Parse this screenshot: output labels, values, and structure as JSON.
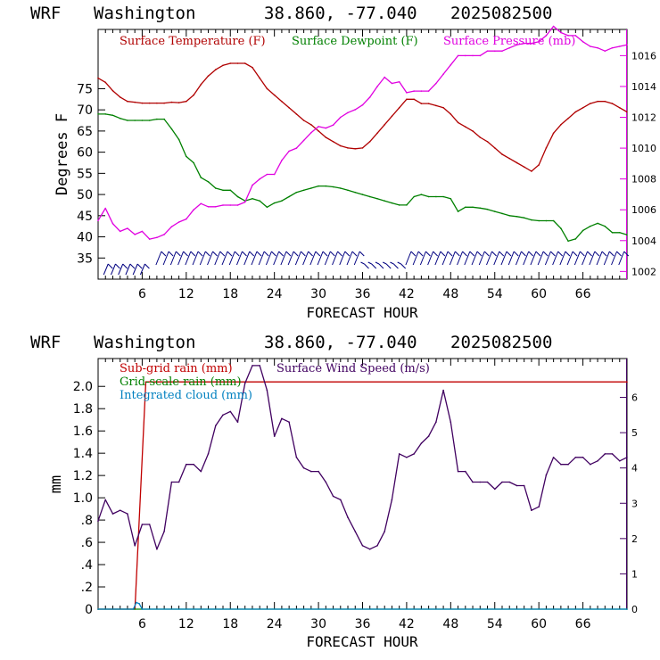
{
  "chart_data": [
    {
      "type": "line",
      "header": {
        "model": "WRF",
        "location": "Washington",
        "coords": "38.860, -77.040",
        "run": "2025082500"
      },
      "xlabel": "FORECAST HOUR",
      "ylabel": "Degrees F",
      "xlim": [
        0,
        72
      ],
      "ylim": [
        30,
        89
      ],
      "y2lim": [
        1001.5,
        1017.7
      ],
      "x_ticks": [
        6,
        12,
        18,
        24,
        30,
        36,
        42,
        48,
        54,
        60,
        66
      ],
      "x_tick_labels": [
        "6",
        "12",
        "18",
        "24",
        "30",
        "36",
        "42",
        "48",
        "54",
        "60",
        "66"
      ],
      "y_ticks": [
        35,
        40,
        45,
        50,
        55,
        60,
        65,
        70,
        75
      ],
      "y_tick_labels": [
        "35",
        "40",
        "45",
        "50",
        "55",
        "60",
        "65",
        "70",
        "75"
      ],
      "y2_ticks": [
        1002,
        1004,
        1006,
        1008,
        1010,
        1012,
        1014,
        1016
      ],
      "y2_tick_labels": [
        "1002",
        "1004",
        "1006",
        "1008",
        "1010",
        "1012",
        "1014",
        "1016"
      ],
      "series": [
        {
          "name": "Surface Temperature (F)",
          "color": "#b00000",
          "axis": "left",
          "x": [
            0,
            1,
            2,
            3,
            4,
            5,
            6,
            7,
            8,
            9,
            10,
            11,
            12,
            13,
            14,
            15,
            16,
            17,
            18,
            19,
            20,
            21,
            22,
            23,
            24,
            25,
            26,
            27,
            28,
            29,
            30,
            31,
            32,
            33,
            34,
            35,
            36,
            37,
            38,
            39,
            40,
            41,
            42,
            43,
            44,
            45,
            46,
            47,
            48,
            49,
            50,
            51,
            52,
            53,
            54,
            55,
            56,
            57,
            58,
            59,
            60,
            61,
            62,
            63,
            64,
            65,
            66,
            67,
            68,
            69,
            70,
            71,
            72
          ],
          "y": [
            77.5,
            76.5,
            74.5,
            73,
            72,
            71.8,
            71.6,
            71.6,
            71.6,
            71.6,
            71.8,
            71.7,
            72,
            73.5,
            76,
            78,
            79.5,
            80.5,
            81,
            81,
            81,
            80,
            77.5,
            75,
            73.5,
            72,
            70.5,
            69,
            67.5,
            66.5,
            65,
            63.5,
            62.5,
            61.5,
            61,
            60.8,
            61,
            62.5,
            64.5,
            66.5,
            68.5,
            70.5,
            72.5,
            72.5,
            71.5,
            71.5,
            71,
            70.5,
            69,
            67,
            66,
            65,
            63.5,
            62.5,
            61,
            59.5,
            58.5,
            57.5,
            56.5,
            55.5,
            57,
            61,
            64.5,
            66.5,
            68,
            69.5,
            70.5,
            71.5,
            72,
            72,
            71.5,
            70.5,
            69.5
          ]
        },
        {
          "name": "Surface Dewpoint (F)",
          "color": "#008000",
          "axis": "left",
          "x": [
            0,
            1,
            2,
            3,
            4,
            5,
            6,
            7,
            8,
            9,
            10,
            11,
            12,
            13,
            14,
            15,
            16,
            17,
            18,
            19,
            20,
            21,
            22,
            23,
            24,
            25,
            26,
            27,
            28,
            29,
            30,
            31,
            32,
            33,
            34,
            35,
            36,
            37,
            38,
            39,
            40,
            41,
            42,
            43,
            44,
            45,
            46,
            47,
            48,
            49,
            50,
            51,
            52,
            53,
            54,
            55,
            56,
            57,
            58,
            59,
            60,
            61,
            62,
            63,
            64,
            65,
            66,
            67,
            68,
            69,
            70,
            71,
            72
          ],
          "y": [
            69,
            69,
            68.7,
            68,
            67.5,
            67.5,
            67.5,
            67.5,
            67.8,
            67.8,
            65.5,
            63,
            59,
            57.5,
            54,
            53,
            51.5,
            51,
            51,
            49.5,
            48.5,
            49,
            48.5,
            47,
            48,
            48.5,
            49.5,
            50.5,
            51,
            51.5,
            52,
            52,
            51.8,
            51.5,
            51,
            50.5,
            50,
            49.5,
            49,
            48.5,
            48,
            47.5,
            47.5,
            49.5,
            50,
            49.5,
            49.5,
            49.5,
            49,
            46,
            47,
            47,
            46.8,
            46.5,
            46,
            45.5,
            45,
            44.8,
            44.5,
            44,
            43.8,
            43.8,
            43.8,
            42,
            39,
            39.5,
            41.5,
            42.5,
            43.2,
            42.5,
            41,
            41,
            40.5
          ]
        },
        {
          "name": "Surface Pressure (mb)",
          "color": "#e000e0",
          "axis": "right",
          "x": [
            0,
            1,
            2,
            3,
            4,
            5,
            6,
            7,
            8,
            9,
            10,
            11,
            12,
            13,
            14,
            15,
            16,
            17,
            18,
            19,
            20,
            21,
            22,
            23,
            24,
            25,
            26,
            27,
            28,
            29,
            30,
            31,
            32,
            33,
            34,
            35,
            36,
            37,
            38,
            39,
            40,
            41,
            42,
            43,
            44,
            45,
            46,
            47,
            48,
            49,
            50,
            51,
            52,
            53,
            54,
            55,
            56,
            57,
            58,
            59,
            60,
            61,
            62,
            63,
            64,
            65,
            66,
            67,
            68,
            69,
            70,
            71,
            72
          ],
          "y": [
            1005.3,
            1006.1,
            1005.1,
            1004.6,
            1004.8,
            1004.4,
            1004.6,
            1004.1,
            1004.2,
            1004.4,
            1004.9,
            1005.2,
            1005.4,
            1006,
            1006.4,
            1006.2,
            1006.2,
            1006.3,
            1006.3,
            1006.3,
            1006.5,
            1007.6,
            1008,
            1008.3,
            1008.3,
            1009.2,
            1009.8,
            1010,
            1010.5,
            1011,
            1011.4,
            1011.3,
            1011.5,
            1012,
            1012.3,
            1012.5,
            1012.8,
            1013.3,
            1014,
            1014.6,
            1014.2,
            1014.3,
            1013.6,
            1013.7,
            1013.7,
            1013.7,
            1014.2,
            1014.8,
            1015.4,
            1016,
            1016,
            1016,
            1016,
            1016.3,
            1016.3,
            1016.3,
            1016.5,
            1016.7,
            1016.8,
            1016.8,
            1016.9,
            1017.3,
            1017.9,
            1017.5,
            1017.3,
            1017.3,
            1016.9,
            1016.6,
            1016.5,
            1016.3,
            1016.5,
            1016.6,
            1016.7
          ]
        }
      ],
      "wind_barbs": {
        "color": "#000080",
        "hours": [
          1,
          2,
          3,
          4,
          5,
          6,
          8,
          9,
          10,
          11,
          12,
          13,
          14,
          15,
          16,
          17,
          18,
          19,
          20,
          21,
          22,
          23,
          24,
          25,
          26,
          27,
          28,
          29,
          30,
          31,
          32,
          33,
          34,
          35,
          36,
          37,
          38,
          39,
          40,
          41,
          42,
          43,
          44,
          45,
          46,
          47,
          48,
          49,
          50,
          51,
          52,
          53,
          54,
          55,
          56,
          57,
          58,
          59,
          60,
          61,
          62,
          63,
          64,
          65,
          66,
          67,
          68,
          69,
          70,
          71
        ]
      }
    },
    {
      "type": "line",
      "header": {
        "model": "WRF",
        "location": "Washington",
        "coords": "38.860, -77.040",
        "run": "2025082500"
      },
      "xlabel": "FORECAST HOUR",
      "ylabel": "mm",
      "xlim": [
        0,
        72
      ],
      "ylim": [
        0,
        2.25
      ],
      "y2lim": [
        0,
        7.1
      ],
      "x_ticks": [
        6,
        12,
        18,
        24,
        30,
        36,
        42,
        48,
        54,
        60,
        66
      ],
      "x_tick_labels": [
        "6",
        "12",
        "18",
        "24",
        "30",
        "36",
        "42",
        "48",
        "54",
        "60",
        "66"
      ],
      "y_ticks": [
        0,
        0.2,
        0.4,
        0.6,
        0.8,
        1.0,
        1.2,
        1.4,
        1.6,
        1.8,
        2.0
      ],
      "y_tick_labels": [
        "0",
        ".2",
        ".4",
        ".6",
        ".8",
        "1.0",
        "1.2",
        "1.4",
        "1.6",
        "1.8",
        "2.0"
      ],
      "y2_ticks": [
        0,
        1,
        2,
        3,
        4,
        5,
        6
      ],
      "y2_tick_labels": [
        "0",
        "1",
        "2",
        "3",
        "4",
        "5",
        "6"
      ],
      "series": [
        {
          "name": "Sub-grid rain (mm)",
          "color": "#c00000",
          "axis": "left",
          "x": [
            0,
            5,
            5.05,
            6.5,
            72
          ],
          "y": [
            0,
            0,
            0.05,
            2.04,
            2.04
          ]
        },
        {
          "name": "Grid-scale rain (mm)",
          "color": "#008000",
          "axis": "left",
          "x": [
            0,
            72
          ],
          "y": [
            0,
            0
          ]
        },
        {
          "name": "Integrated cloud (mm)",
          "color": "#0080c0",
          "axis": "left",
          "x": [
            0,
            4.8,
            5.2,
            5.6,
            6,
            72
          ],
          "y": [
            0,
            0,
            0.06,
            0.05,
            0,
            0
          ]
        },
        {
          "name": "Surface Wind Speed (m/s)",
          "color": "#400060",
          "axis": "right",
          "x": [
            0,
            1,
            2,
            3,
            4,
            5,
            6,
            7,
            8,
            9,
            10,
            11,
            12,
            13,
            14,
            15,
            16,
            17,
            18,
            19,
            20,
            21,
            22,
            23,
            24,
            25,
            26,
            27,
            28,
            29,
            30,
            31,
            32,
            33,
            34,
            35,
            36,
            37,
            38,
            39,
            40,
            41,
            42,
            43,
            44,
            45,
            46,
            47,
            48,
            49,
            50,
            51,
            52,
            53,
            54,
            55,
            56,
            57,
            58,
            59,
            60,
            61,
            62,
            63,
            64,
            65,
            66,
            67,
            68,
            69,
            70,
            71,
            72
          ],
          "y": [
            2.5,
            3.1,
            2.7,
            2.8,
            2.7,
            1.8,
            2.4,
            2.4,
            1.7,
            2.2,
            3.6,
            3.6,
            4.1,
            4.1,
            3.9,
            4.4,
            5.2,
            5.5,
            5.6,
            5.3,
            6.4,
            6.9,
            6.9,
            6.2,
            4.9,
            5.4,
            5.3,
            4.3,
            4.0,
            3.9,
            3.9,
            3.6,
            3.2,
            3.1,
            2.6,
            2.2,
            1.8,
            1.7,
            1.8,
            2.2,
            3.1,
            4.4,
            4.3,
            4.4,
            4.7,
            4.9,
            5.3,
            6.2,
            5.3,
            3.9,
            3.9,
            3.6,
            3.6,
            3.6,
            3.4,
            3.6,
            3.6,
            3.5,
            3.5,
            2.8,
            2.9,
            3.8,
            4.3,
            4.1,
            4.1,
            4.3,
            4.3,
            4.1,
            4.2,
            4.4,
            4.4,
            4.2,
            4.3
          ]
        }
      ]
    }
  ]
}
